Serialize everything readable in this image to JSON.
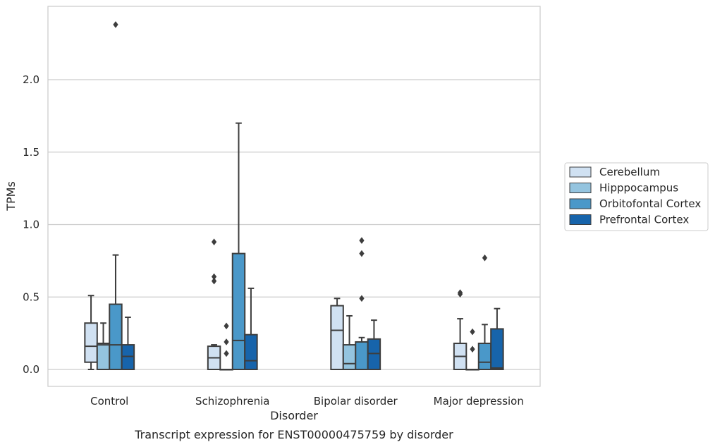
{
  "chart_data": {
    "type": "box",
    "title": "Transcript expression for ENST00000475759 by disorder",
    "xlabel": "Disorder",
    "ylabel": "TPMs",
    "ylim": [
      -0.12,
      2.55
    ],
    "yticks": [
      0.0,
      0.5,
      1.0,
      1.5,
      2.0
    ],
    "ytick_labels": [
      "0.0",
      "0.5",
      "1.0",
      "1.5",
      "2.0"
    ],
    "grid": "horizontal",
    "legend_position": "right",
    "categories": [
      "Control",
      "Schizophrenia",
      "Bipolar disorder",
      "Major depression"
    ],
    "series": [
      {
        "name": "Cerebellum",
        "color": "#d0e1f2",
        "boxes": [
          {
            "min": 0.0,
            "q1": 0.05,
            "median": 0.16,
            "q3": 0.32,
            "max": 0.51,
            "outliers": []
          },
          {
            "min": 0.0,
            "q1": 0.0,
            "median": 0.08,
            "q3": 0.16,
            "max": 0.17,
            "outliers": [
              0.61,
              0.64,
              0.88
            ]
          },
          {
            "min": 0.0,
            "q1": 0.0,
            "median": 0.27,
            "q3": 0.44,
            "max": 0.49,
            "outliers": []
          },
          {
            "min": 0.0,
            "q1": 0.0,
            "median": 0.09,
            "q3": 0.18,
            "max": 0.35,
            "outliers": [
              0.52,
              0.53
            ]
          }
        ]
      },
      {
        "name": "Hipppocampus",
        "color": "#94c4df",
        "boxes": [
          {
            "min": 0.0,
            "q1": 0.0,
            "median": 0.17,
            "q3": 0.18,
            "max": 0.32,
            "outliers": []
          },
          {
            "min": 0.0,
            "q1": 0.0,
            "median": 0.0,
            "q3": 0.0,
            "max": 0.0,
            "outliers": [
              0.11,
              0.19,
              0.3
            ]
          },
          {
            "min": 0.0,
            "q1": 0.0,
            "median": 0.04,
            "q3": 0.17,
            "max": 0.37,
            "outliers": []
          },
          {
            "min": 0.0,
            "q1": 0.0,
            "median": 0.0,
            "q3": 0.0,
            "max": 0.0,
            "outliers": [
              0.14,
              0.26
            ]
          }
        ]
      },
      {
        "name": "Orbitofontal Cortex",
        "color": "#4a98c9",
        "boxes": [
          {
            "min": 0.0,
            "q1": 0.0,
            "median": 0.17,
            "q3": 0.45,
            "max": 0.79,
            "outliers": [
              2.38
            ]
          },
          {
            "min": 0.0,
            "q1": 0.0,
            "median": 0.2,
            "q3": 0.8,
            "max": 1.7,
            "outliers": []
          },
          {
            "min": 0.0,
            "q1": 0.0,
            "median": 0.0,
            "q3": 0.19,
            "max": 0.22,
            "outliers": [
              0.49,
              0.8,
              0.89
            ]
          },
          {
            "min": 0.0,
            "q1": 0.0,
            "median": 0.05,
            "q3": 0.18,
            "max": 0.31,
            "outliers": [
              0.77
            ]
          }
        ]
      },
      {
        "name": "Prefrontal Cortex",
        "color": "#1764ab",
        "boxes": [
          {
            "min": 0.0,
            "q1": 0.0,
            "median": 0.09,
            "q3": 0.17,
            "max": 0.36,
            "outliers": []
          },
          {
            "min": 0.0,
            "q1": 0.0,
            "median": 0.06,
            "q3": 0.24,
            "max": 0.56,
            "outliers": []
          },
          {
            "min": 0.0,
            "q1": 0.0,
            "median": 0.11,
            "q3": 0.21,
            "max": 0.34,
            "outliers": []
          },
          {
            "min": 0.0,
            "q1": 0.0,
            "median": 0.01,
            "q3": 0.28,
            "max": 0.42,
            "outliers": []
          }
        ]
      }
    ]
  }
}
